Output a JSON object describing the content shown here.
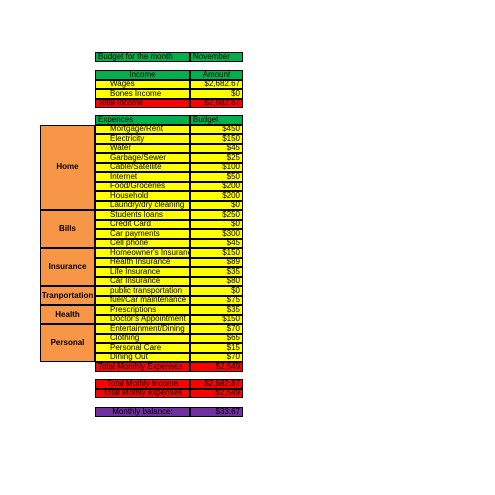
{
  "header": {
    "label": "Budget for the month",
    "month": "November"
  },
  "income": {
    "headers": [
      "Income",
      "Amount"
    ],
    "rows": [
      [
        "Wages",
        "$2,682.67"
      ],
      [
        "Bones Income",
        "$0"
      ]
    ],
    "total": [
      "Total Income",
      "$2,682.67"
    ]
  },
  "expenses": {
    "headers": [
      "Expences",
      "Budget"
    ],
    "groups": [
      {
        "name": "Home",
        "items": [
          [
            "Mortgage/Rent",
            "$450"
          ],
          [
            "Electricity",
            "$150"
          ],
          [
            "Water",
            "$45"
          ],
          [
            "Garbage/Sewer",
            "$25"
          ],
          [
            "Cable/Satellite",
            "$100"
          ],
          [
            "Internet",
            "$50"
          ],
          [
            "Food/Groceries",
            "$200"
          ],
          [
            "Household",
            "$200"
          ],
          [
            "Laundry/dry cleaning",
            "$0"
          ]
        ]
      },
      {
        "name": "Bills",
        "items": [
          [
            "Students loans",
            "$250"
          ],
          [
            "Credit Card",
            "$0"
          ],
          [
            "Car payments",
            "$300"
          ],
          [
            "Cell phone",
            "$45"
          ]
        ]
      },
      {
        "name": "Insurance",
        "items": [
          [
            "Homeowner's Insurance",
            "$150"
          ],
          [
            "Health Insurance",
            "$89"
          ],
          [
            "Life Insurance",
            "$35"
          ],
          [
            "Car Insurance",
            "$80"
          ]
        ]
      },
      {
        "name": "Tranportation",
        "items": [
          [
            "public transportation",
            "$0"
          ],
          [
            "fuel/Car maintenance",
            "$75"
          ]
        ]
      },
      {
        "name": "Health",
        "items": [
          [
            "Prescriptions",
            "$35"
          ],
          [
            "Doctor's Appointment",
            "$150"
          ]
        ]
      },
      {
        "name": "Personal",
        "items": [
          [
            "Entertainment/Dining",
            "$70"
          ],
          [
            "Clothing",
            "$65"
          ],
          [
            "Personal Care",
            "$15"
          ],
          [
            "Dining Out",
            "$70"
          ]
        ]
      }
    ],
    "total": [
      "Total Monthly Expenses",
      "$2,649"
    ]
  },
  "summary": {
    "rows": [
      [
        "Total Mothly Income",
        "$2,682.67"
      ],
      [
        "Total Mothly expenses",
        "$2,649"
      ]
    ]
  },
  "balance": [
    "Monthly balance:",
    "$33.67"
  ]
}
